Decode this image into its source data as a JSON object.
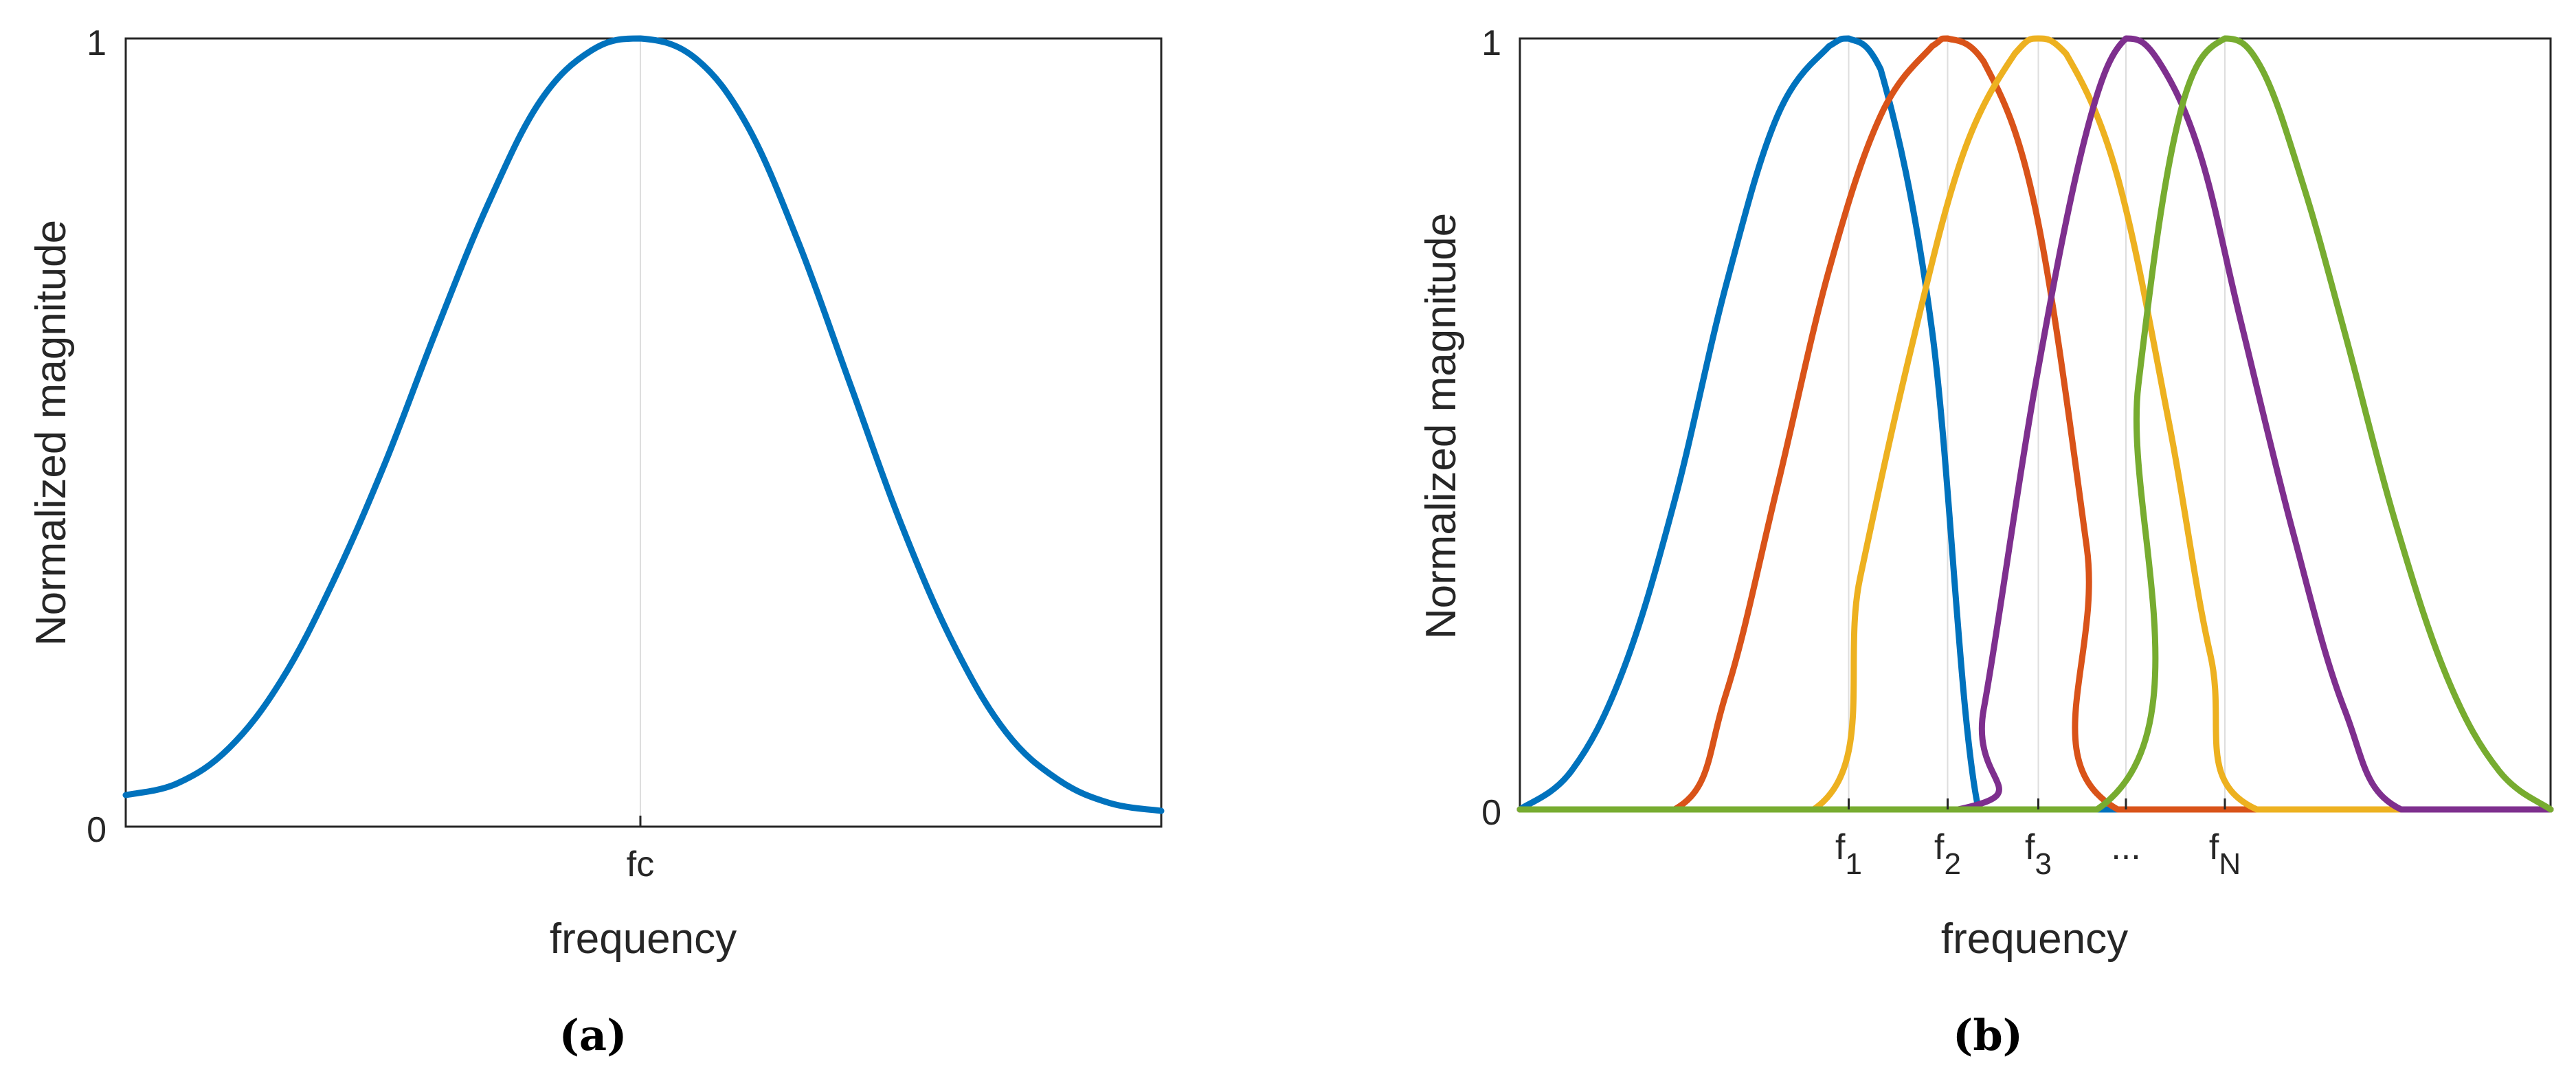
{
  "chart_data": [
    {
      "type": "line",
      "caption": "(a)",
      "xlabel": "frequency",
      "ylabel": "Normalized magnitude",
      "yticks": [
        "0",
        "1"
      ],
      "ylim": [
        0,
        1
      ],
      "xlim": [
        0,
        1
      ],
      "xticks": [
        {
          "x": 0.497,
          "label": "fc"
        }
      ],
      "grid": "vertical line at tick",
      "series": [
        {
          "color": "#0072BD",
          "x": [
            0,
            0.05,
            0.1,
            0.15,
            0.2,
            0.25,
            0.3,
            0.35,
            0.4,
            0.45,
            0.497,
            0.55,
            0.6,
            0.65,
            0.7,
            0.75,
            0.8,
            0.85,
            0.9,
            0.95,
            1
          ],
          "y": [
            0.04,
            0.055,
            0.1,
            0.185,
            0.31,
            0.46,
            0.63,
            0.79,
            0.92,
            0.985,
            1.0,
            0.975,
            0.89,
            0.74,
            0.56,
            0.38,
            0.23,
            0.12,
            0.06,
            0.03,
            0.02
          ]
        }
      ]
    },
    {
      "type": "line",
      "caption": "(b)",
      "xlabel": "frequency",
      "ylabel": "Normalized magnitude",
      "yticks": [
        "0",
        "1"
      ],
      "ylim": [
        0,
        1
      ],
      "xlim": [
        0,
        1
      ],
      "xticks": [
        {
          "x": 0.319,
          "label": "f",
          "sub": "1"
        },
        {
          "x": 0.415,
          "label": "f",
          "sub": "2"
        },
        {
          "x": 0.503,
          "label": "f",
          "sub": "3"
        },
        {
          "x": 0.588,
          "label": "...",
          "sub": ""
        },
        {
          "x": 0.684,
          "label": "f",
          "sub": "N"
        }
      ],
      "grid": "vertical lines at ticks",
      "series": [
        {
          "color": "#0072BD",
          "x": [
            0,
            0.05,
            0.1,
            0.15,
            0.2,
            0.25,
            0.3,
            0.319,
            0.35,
            0.4,
            0.445,
            0.5,
            1
          ],
          "y": [
            0,
            0.05,
            0.18,
            0.4,
            0.68,
            0.9,
            0.99,
            1.0,
            0.96,
            0.62,
            0,
            0,
            0
          ]
        },
        {
          "color": "#D95319",
          "x": [
            0,
            0.15,
            0.2,
            0.25,
            0.3,
            0.35,
            0.4,
            0.415,
            0.45,
            0.5,
            0.55,
            0.58,
            1
          ],
          "y": [
            0,
            0,
            0.15,
            0.42,
            0.7,
            0.9,
            0.99,
            1.0,
            0.97,
            0.78,
            0.34,
            0,
            0
          ]
        },
        {
          "color": "#EDB120",
          "x": [
            0,
            0.285,
            0.33,
            0.38,
            0.43,
            0.48,
            0.503,
            0.53,
            0.58,
            0.63,
            0.67,
            0.715,
            1
          ],
          "y": [
            0,
            0,
            0.3,
            0.6,
            0.85,
            0.98,
            1.0,
            0.98,
            0.82,
            0.5,
            0.2,
            0,
            0
          ]
        },
        {
          "color": "#7E2F8E",
          "x": [
            0,
            0.425,
            0.45,
            0.5,
            0.55,
            0.588,
            0.62,
            0.66,
            0.7,
            0.75,
            0.8,
            0.855,
            1
          ],
          "y": [
            0,
            0,
            0.13,
            0.55,
            0.88,
            1.0,
            0.97,
            0.85,
            0.63,
            0.36,
            0.13,
            0,
            0
          ]
        },
        {
          "color": "#77AC30",
          "x": [
            0,
            0.56,
            0.6,
            0.64,
            0.684,
            0.72,
            0.76,
            0.8,
            0.85,
            0.9,
            0.95,
            1
          ],
          "y": [
            0,
            0,
            0.55,
            0.9,
            1.0,
            0.96,
            0.81,
            0.62,
            0.37,
            0.17,
            0.05,
            0
          ]
        }
      ]
    }
  ]
}
